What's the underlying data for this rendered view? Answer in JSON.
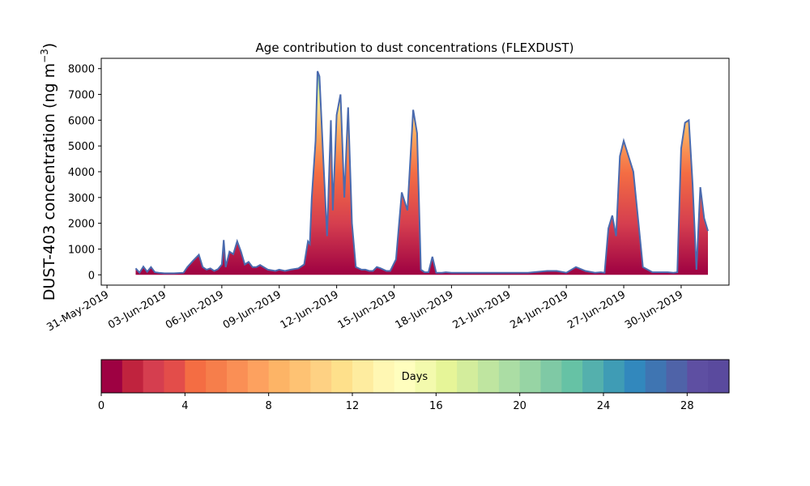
{
  "chart_data": {
    "type": "area",
    "title": "Age contribution to dust concentrations (FLEXDUST)",
    "ylabel": "DUST-403 concentration (ng m",
    "ylabel_sup": "−3",
    "ylabel_close": ")",
    "xlabel": "",
    "ylim": [
      -400,
      8400
    ],
    "yticks": [
      "0",
      "1000",
      "2000",
      "3000",
      "4000",
      "5000",
      "6000",
      "7000",
      "8000"
    ],
    "ytick_values": [
      0,
      1000,
      2000,
      3000,
      4000,
      5000,
      6000,
      7000,
      8000
    ],
    "xlim_days": [
      -0.3,
      32.5
    ],
    "xticks": [
      "31-May-2019",
      "03-Jun-2019",
      "06-Jun-2019",
      "09-Jun-2019",
      "12-Jun-2019",
      "15-Jun-2019",
      "18-Jun-2019",
      "21-Jun-2019",
      "24-Jun-2019",
      "27-Jun-2019",
      "30-Jun-2019"
    ],
    "xtick_values": [
      0,
      3,
      6,
      9,
      12,
      15,
      18,
      21,
      24,
      27,
      30
    ],
    "x_day_offsets": [
      1.5,
      1.7,
      1.9,
      2.1,
      2.3,
      2.5,
      2.7,
      3.0,
      3.5,
      4.0,
      4.2,
      4.5,
      4.8,
      5.0,
      5.2,
      5.4,
      5.6,
      5.8,
      6.0,
      6.1,
      6.2,
      6.4,
      6.6,
      6.8,
      7.0,
      7.2,
      7.4,
      7.6,
      7.8,
      8.0,
      8.4,
      8.8,
      9.0,
      9.3,
      9.6,
      10.0,
      10.3,
      10.5,
      10.6,
      10.7,
      10.9,
      11.0,
      11.1,
      11.3,
      11.5,
      11.7,
      11.8,
      12.0,
      12.2,
      12.4,
      12.6,
      12.8,
      13.0,
      13.3,
      13.5,
      13.7,
      13.9,
      14.1,
      14.3,
      14.6,
      14.8,
      15.1,
      15.4,
      15.7,
      16.0,
      16.2,
      16.4,
      16.6,
      16.8,
      17.0,
      17.2,
      17.4,
      17.5,
      17.7,
      18.0,
      18.5,
      19.0,
      20.0,
      21.0,
      22.0,
      23.0,
      23.5,
      24.0,
      24.5,
      25.0,
      25.5,
      25.8,
      26.0,
      26.2,
      26.4,
      26.6,
      26.8,
      27.0,
      27.5,
      28.0,
      28.5,
      29.0,
      29.3,
      29.6,
      29.8,
      30.0,
      30.2,
      30.4,
      30.6,
      30.8,
      31.0,
      31.2,
      31.4
    ],
    "series": [
      {
        "values": [
          250,
          80,
          320,
          120,
          300,
          100,
          80,
          60,
          60,
          80,
          300,
          550,
          780,
          300,
          200,
          250,
          150,
          220,
          400,
          1350,
          300,
          900,
          800,
          1300,
          900,
          400,
          500,
          300,
          300,
          380,
          200,
          150,
          200,
          150,
          200,
          250,
          400,
          1300,
          1200,
          3000,
          5200,
          7900,
          7700,
          4500,
          1500,
          6000,
          2500,
          6200,
          7000,
          3000,
          6500,
          2000,
          300,
          200,
          200,
          150,
          150,
          300,
          250,
          150,
          150,
          600,
          3200,
          2500,
          6400,
          5500,
          200,
          100,
          100,
          700,
          80,
          80,
          80,
          100,
          80,
          80,
          80,
          80,
          80,
          80,
          150,
          150,
          80,
          300,
          150,
          80,
          100,
          80,
          1800,
          2300,
          1500,
          4600,
          5200,
          4000,
          300,
          100,
          100,
          100,
          80,
          100,
          4900,
          5900,
          6000,
          3500,
          200,
          3400,
          2200,
          1700
        ]
      }
    ],
    "colorbar": {
      "label": "Days",
      "ticks": [
        "0",
        "4",
        "8",
        "12",
        "16",
        "20",
        "24",
        "28"
      ],
      "tick_values": [
        0,
        4,
        8,
        12,
        16,
        20,
        24,
        28
      ],
      "vmin": 0,
      "vmax": 30,
      "colors": [
        "#9e0142",
        "#c0233e",
        "#d53e4f",
        "#e34d4a",
        "#f46d43",
        "#f67e4b",
        "#fa8f55",
        "#fda15f",
        "#fdb466",
        "#fec273",
        "#fed183",
        "#fee08b",
        "#feec9f",
        "#fff7b3",
        "#fffebe",
        "#f3faad",
        "#e6f598",
        "#d3ed9c",
        "#bfe5a0",
        "#abdda4",
        "#97d4a4",
        "#7fc9a5",
        "#66c2a5",
        "#54b0ad",
        "#3f9cb5",
        "#3288bd",
        "#3f75b2",
        "#4f63a8",
        "#5e4fa2",
        "#5a4a9e"
      ]
    }
  }
}
